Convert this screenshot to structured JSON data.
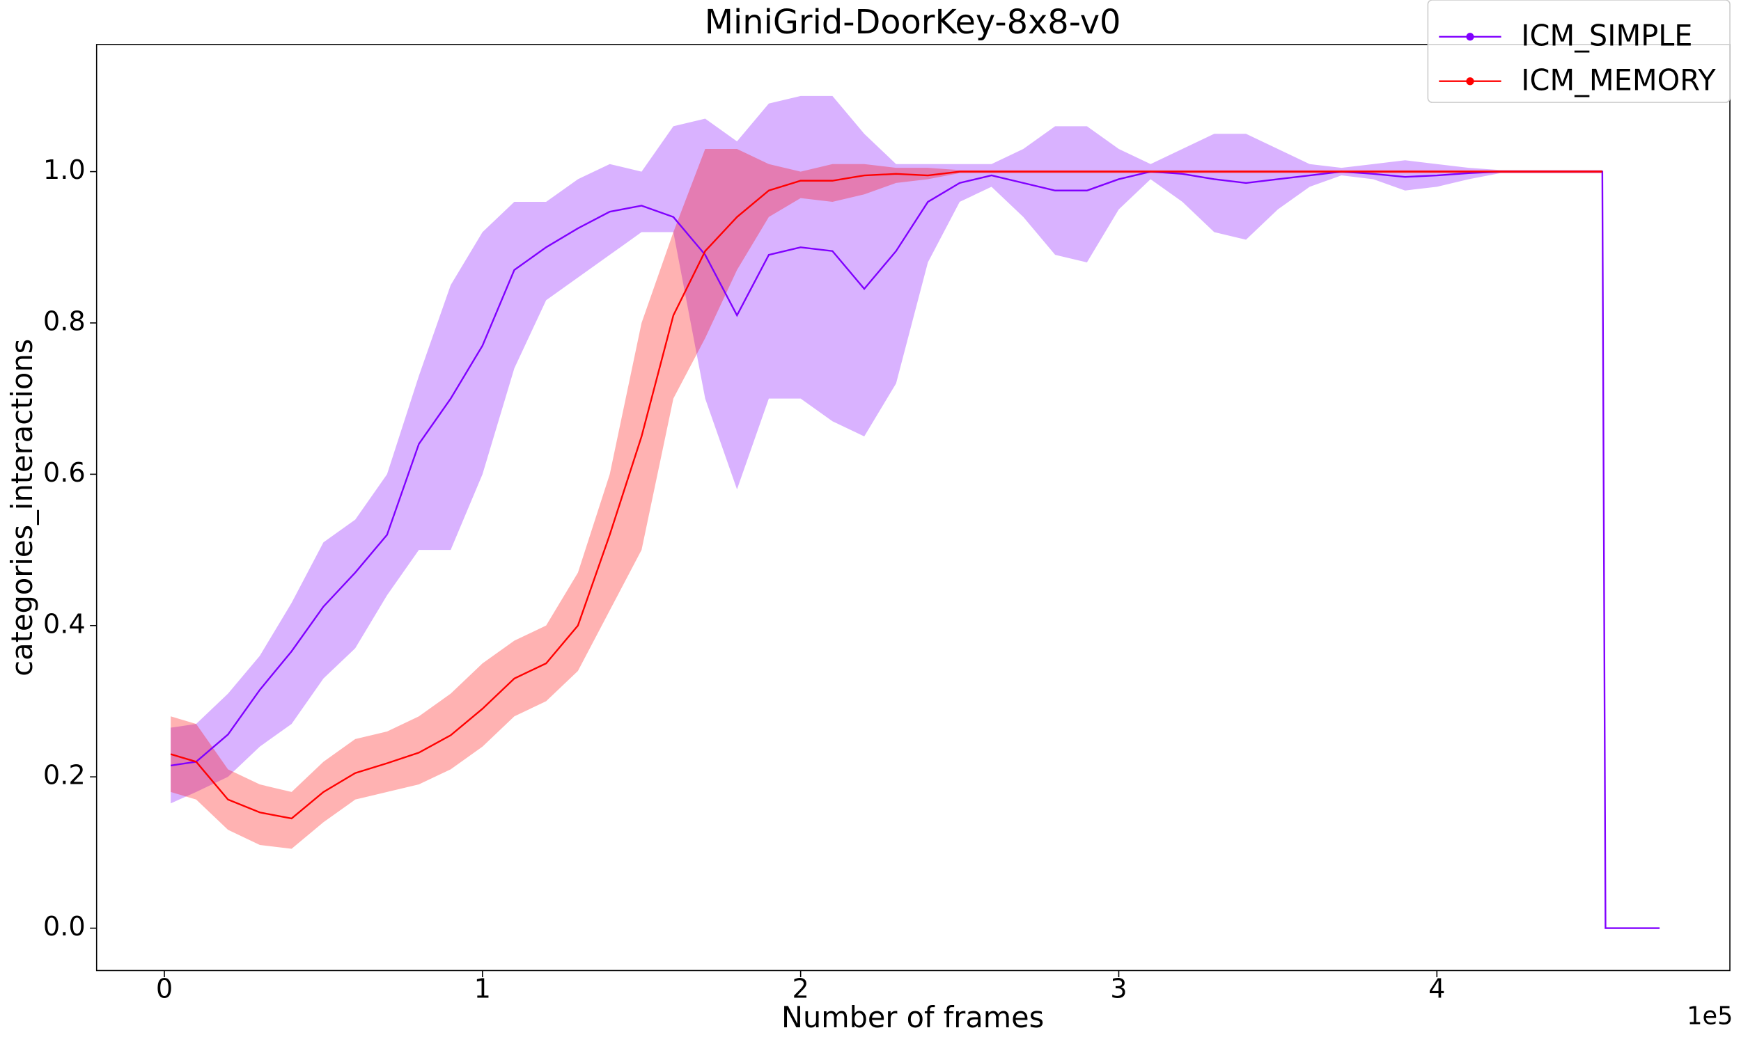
{
  "chart_data": {
    "type": "line",
    "title": "MiniGrid-DoorKey-8x8-v0",
    "x_label": "Number of frames",
    "y_label": "categories_interactions",
    "x_offset_label": "1e5",
    "x": [
      0.02,
      0.1,
      0.2,
      0.3,
      0.4,
      0.5,
      0.6,
      0.7,
      0.8,
      0.9,
      1.0,
      1.1,
      1.2,
      1.3,
      1.4,
      1.5,
      1.6,
      1.7,
      1.8,
      1.9,
      2.0,
      2.1,
      2.2,
      2.3,
      2.4,
      2.5,
      2.6,
      2.7,
      2.8,
      2.9,
      3.0,
      3.1,
      3.2,
      3.3,
      3.4,
      3.5,
      3.6,
      3.7,
      3.8,
      3.9,
      4.0,
      4.1,
      4.2,
      4.3,
      4.4,
      4.52,
      4.53,
      4.7
    ],
    "series": [
      {
        "name": "ICM_SIMPLE",
        "color": "#8000ff",
        "values": [
          0.215,
          0.22,
          0.256,
          0.315,
          0.366,
          0.425,
          0.47,
          0.52,
          0.64,
          0.7,
          0.77,
          0.87,
          0.9,
          0.925,
          0.947,
          0.955,
          0.94,
          0.89,
          0.81,
          0.89,
          0.9,
          0.895,
          0.845,
          0.895,
          0.96,
          0.985,
          0.995,
          0.985,
          0.975,
          0.975,
          0.99,
          1.0,
          0.997,
          0.99,
          0.985,
          0.99,
          0.995,
          1.0,
          0.997,
          0.993,
          0.995,
          0.998,
          1.0,
          1.0,
          1.0,
          1.0,
          0,
          0
        ],
        "lower": [
          0.165,
          0.18,
          0.2,
          0.24,
          0.27,
          0.33,
          0.37,
          0.44,
          0.5,
          0.5,
          0.6,
          0.74,
          0.83,
          0.86,
          0.89,
          0.92,
          0.92,
          0.7,
          0.58,
          0.7,
          0.7,
          0.67,
          0.65,
          0.72,
          0.88,
          0.96,
          0.98,
          0.94,
          0.89,
          0.88,
          0.95,
          0.99,
          0.96,
          0.92,
          0.91,
          0.95,
          0.98,
          0.995,
          0.99,
          0.975,
          0.98,
          0.99,
          0.998,
          0.998,
          0.998,
          0.998,
          null,
          null
        ],
        "upper": [
          0.265,
          0.27,
          0.31,
          0.36,
          0.43,
          0.51,
          0.54,
          0.6,
          0.73,
          0.85,
          0.92,
          0.96,
          0.96,
          0.99,
          1.01,
          1.0,
          1.06,
          1.07,
          1.04,
          1.09,
          1.1,
          1.1,
          1.05,
          1.01,
          1.01,
          1.01,
          1.01,
          1.03,
          1.06,
          1.06,
          1.03,
          1.01,
          1.03,
          1.05,
          1.05,
          1.03,
          1.01,
          1.005,
          1.01,
          1.015,
          1.01,
          1.005,
          1.002,
          1.002,
          1.002,
          1.002,
          null,
          null
        ]
      },
      {
        "name": "ICM_MEMORY",
        "color": "#ff0000",
        "values": [
          0.23,
          0.22,
          0.17,
          0.153,
          0.145,
          0.18,
          0.205,
          0.218,
          0.232,
          0.255,
          0.29,
          0.33,
          0.35,
          0.4,
          0.52,
          0.65,
          0.81,
          0.895,
          0.94,
          0.975,
          0.988,
          0.988,
          0.995,
          0.997,
          0.995,
          1.0,
          1.0,
          1.0,
          1.0,
          1.0,
          1.0,
          1.0,
          1.0,
          1.0,
          1.0,
          1.0,
          1.0,
          1.0,
          1.0,
          1.0,
          1.0,
          1.0,
          1.0,
          1.0,
          1.0,
          1.0,
          null,
          null
        ],
        "lower": [
          0.18,
          0.17,
          0.13,
          0.11,
          0.105,
          0.14,
          0.17,
          0.18,
          0.19,
          0.21,
          0.24,
          0.28,
          0.3,
          0.34,
          0.42,
          0.5,
          0.7,
          0.78,
          0.87,
          0.94,
          0.965,
          0.96,
          0.97,
          0.985,
          0.99,
          0.998,
          0.998,
          0.998,
          0.998,
          0.998,
          0.998,
          0.998,
          0.998,
          0.998,
          0.998,
          0.998,
          0.998,
          0.998,
          0.998,
          0.998,
          0.998,
          0.998,
          0.998,
          0.998,
          0.998,
          0.998,
          null,
          null
        ],
        "upper": [
          0.28,
          0.27,
          0.21,
          0.19,
          0.18,
          0.22,
          0.25,
          0.26,
          0.28,
          0.31,
          0.35,
          0.38,
          0.4,
          0.47,
          0.6,
          0.8,
          0.92,
          1.03,
          1.03,
          1.01,
          1.0,
          1.01,
          1.01,
          1.005,
          1.005,
          1.002,
          1.002,
          1.002,
          1.002,
          1.002,
          1.002,
          1.002,
          1.002,
          1.002,
          1.002,
          1.002,
          1.002,
          1.002,
          1.002,
          1.002,
          1.002,
          1.002,
          1.002,
          1.002,
          1.002,
          1.002,
          null,
          null
        ]
      }
    ],
    "xlim": [
      -0.213,
      4.921
    ],
    "ylim": [
      -0.056,
      1.168
    ],
    "xticks": [
      0,
      1,
      2,
      3,
      4
    ],
    "yticks": [
      {
        "value": 0,
        "label": "0.0"
      },
      {
        "value": 0.2,
        "label": "0.2"
      },
      {
        "value": 0.4,
        "label": "0.4"
      },
      {
        "value": 0.6,
        "label": "0.6"
      },
      {
        "value": 0.8,
        "label": "0.8"
      },
      {
        "value": 1.0,
        "label": "1.0"
      }
    ],
    "grid": false,
    "legend": "upper-right"
  }
}
